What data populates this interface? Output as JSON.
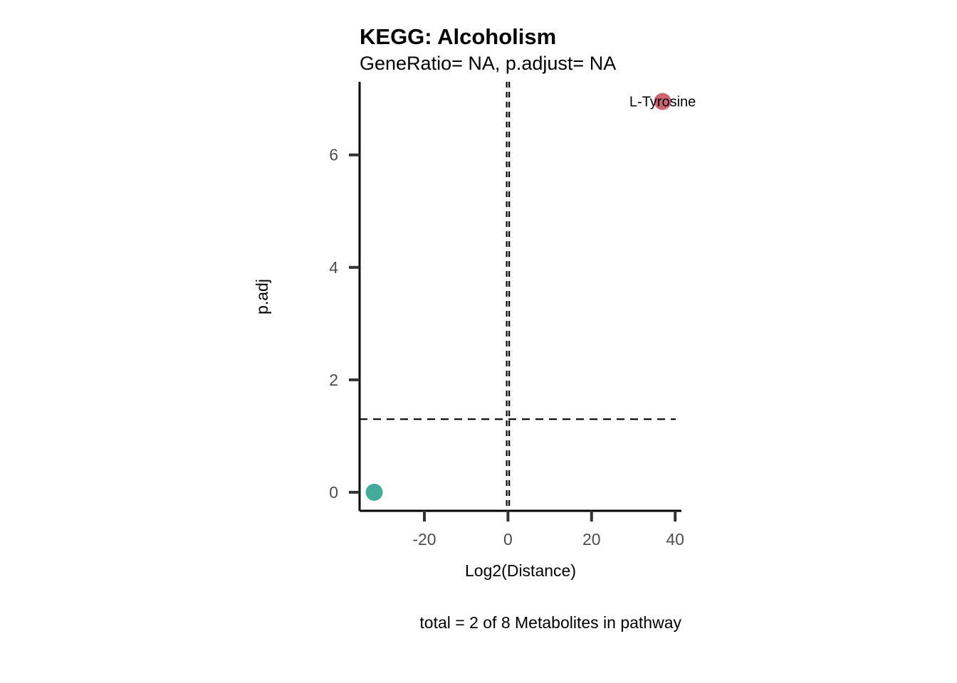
{
  "chart_data": {
    "type": "scatter",
    "title": "KEGG: Alcoholism",
    "subtitle": "GeneRatio= NA, p.adjust= NA",
    "xlabel": "Log2(Distance)",
    "ylabel": "p.adj",
    "caption": "total = 2 of 8 Metabolites in pathway",
    "xlim": [
      -35.5,
      41.5
    ],
    "ylim": [
      -0.33,
      7.3
    ],
    "xticks": [
      -20,
      0,
      20,
      40
    ],
    "yticks": [
      0,
      2,
      4,
      6
    ],
    "grid": false,
    "points": [
      {
        "x": -32,
        "y": 0.0,
        "label": "",
        "color": "#44AA99"
      },
      {
        "x": 37,
        "y": 6.95,
        "label": "L-Tyrosine",
        "color": "#CC6677"
      }
    ],
    "reference_lines": {
      "vertical": [
        -0.3,
        0.3
      ],
      "horizontal": [
        1.3
      ],
      "style": "dashed"
    }
  }
}
